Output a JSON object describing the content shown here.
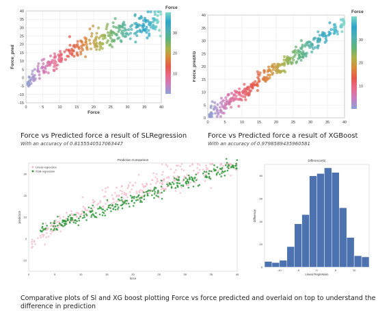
{
  "captions": {
    "sl_title": "Force vs Predicted force a result of SLRegression",
    "sl_acc": "With an accuracy of 0.8155540517063447",
    "xg_title": "Force vs Predicted force a result of XGBoost",
    "xg_acc": "With an accuracy of 0.9798589435960581",
    "bottom": "Comparative plots of Sl and XG boost plotting Force vs force predicted and overlaid on top to understand the difference in prediction"
  },
  "colors": {
    "force_gradient": [
      "#8ba4d4",
      "#c77fc0",
      "#e86b8c",
      "#e4574a",
      "#d98a3a",
      "#a9b34a",
      "#5fb37a",
      "#4fb0b4",
      "#2fa5c9",
      "#7dd8c7"
    ],
    "sl_overlay": "#f5b8c8",
    "xg_overlay": "#2f9a3a",
    "hist_bar": "#4c72b0"
  },
  "chart_data": [
    {
      "type": "scatter",
      "xlabel": "Force",
      "ylabel": "Force_pred",
      "legend_title": "Force",
      "legend_ticks": [
        "30",
        "20",
        "10"
      ],
      "legend_placement": "right",
      "xlim": [
        0,
        40
      ],
      "ylim": [
        -15,
        40
      ],
      "xticks": [
        "0",
        "5",
        "10",
        "15",
        "20",
        "25",
        "30",
        "35",
        "40"
      ],
      "yticks": [
        "40",
        "35",
        "30",
        "25",
        "20",
        "15",
        "10",
        "5",
        "0",
        "-5",
        "-10",
        "-15"
      ],
      "model": "sqrt",
      "n_points": 320,
      "noise": 3.0
    },
    {
      "type": "scatter",
      "xlabel": "Force",
      "ylabel": "Force_predXG",
      "legend_title": "Force",
      "legend_ticks": [
        "30",
        "20",
        "10"
      ],
      "legend_placement": "right",
      "xlim": [
        0,
        40
      ],
      "ylim": [
        0,
        40
      ],
      "xticks": [
        "0",
        "5",
        "10",
        "15",
        "20",
        "25",
        "30",
        "35",
        "40"
      ],
      "yticks": [
        "40",
        "35",
        "30",
        "25",
        "20",
        "15",
        "10",
        "5",
        "0"
      ],
      "model": "linear",
      "n_points": 340,
      "noise": 1.6
    },
    {
      "type": "scatter",
      "title": "Prediction Comparison",
      "xlabel": "force",
      "ylabel": "prediction",
      "xlim": [
        0,
        40
      ],
      "ylim": [
        -15,
        35
      ],
      "xticks": [
        "0",
        "5",
        "10",
        "15",
        "20",
        "25",
        "30",
        "35",
        "40"
      ],
      "yticks": [
        "30",
        "20",
        "10",
        "0",
        "-10"
      ],
      "legend_placement": "top-left",
      "series": [
        {
          "name": "Linear regression",
          "model": "sqrt",
          "n_points": 300
        },
        {
          "name": "XGB regression",
          "model": "linear",
          "n_points": 300
        }
      ]
    },
    {
      "type": "bar",
      "title": "Difference(5)",
      "xlabel": "Linear Regression",
      "ylabel": "Difference",
      "categories": [
        "-13",
        "-11",
        "-9",
        "-7",
        "-5",
        "-3",
        "-1",
        "1",
        "3",
        "5",
        "7",
        "9",
        "11",
        "13"
      ],
      "values": [
        5,
        4,
        6,
        18,
        38,
        46,
        80,
        82,
        87,
        83,
        52,
        26,
        10,
        9
      ],
      "ylim": [
        0,
        90
      ],
      "xticks": [
        "-10",
        "-5",
        "0",
        "5",
        "10"
      ],
      "yticks": [
        "80",
        "60",
        "40",
        "20",
        "0"
      ]
    }
  ]
}
